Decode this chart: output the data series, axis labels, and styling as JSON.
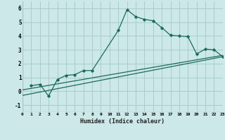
{
  "title": "",
  "xlabel": "Humidex (Indice chaleur)",
  "bg_color": "#cce8e8",
  "grid_color": "#aacccc",
  "line_color": "#1a6b5a",
  "xlim": [
    0,
    23
  ],
  "ylim": [
    -1.5,
    6.5
  ],
  "xticks": [
    0,
    1,
    2,
    3,
    4,
    5,
    6,
    7,
    8,
    9,
    10,
    11,
    12,
    13,
    14,
    15,
    16,
    17,
    18,
    19,
    20,
    21,
    22,
    23
  ],
  "yticks": [
    -1,
    0,
    1,
    2,
    3,
    4,
    5,
    6
  ],
  "line1_x": [
    1,
    2,
    3,
    4,
    5,
    6,
    7,
    8,
    11,
    12,
    13,
    14,
    15,
    16,
    17,
    18,
    19,
    20,
    21,
    22,
    23
  ],
  "line1_y": [
    0.4,
    0.5,
    -0.35,
    0.85,
    1.15,
    1.2,
    1.5,
    1.5,
    4.4,
    5.9,
    5.4,
    5.2,
    5.1,
    4.6,
    4.05,
    4.0,
    3.95,
    2.7,
    3.05,
    3.0,
    2.5
  ],
  "line2_x": [
    0,
    23
  ],
  "line2_y": [
    -0.3,
    2.5
  ],
  "line3_x": [
    0,
    23
  ],
  "line3_y": [
    0.1,
    2.6
  ]
}
